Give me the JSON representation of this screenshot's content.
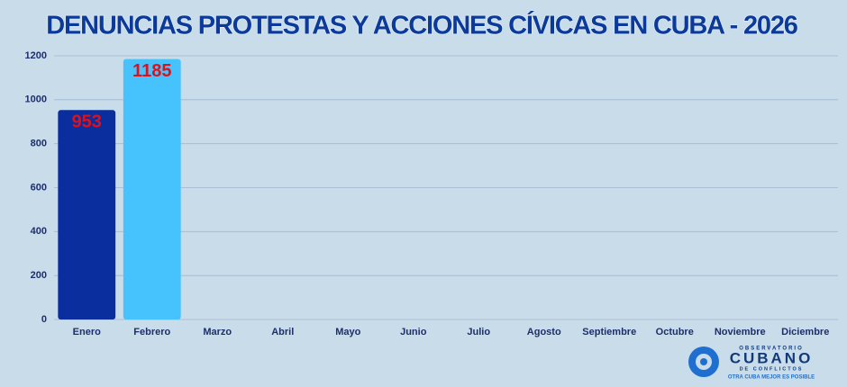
{
  "chart_data": {
    "type": "bar",
    "title": "DENUNCIAS PROTESTAS Y ACCIONES CÍVICAS EN CUBA - 2026",
    "categories": [
      "Enero",
      "Febrero",
      "Marzo",
      "Abril",
      "Mayo",
      "Junio",
      "Julio",
      "Agosto",
      "Septiembre",
      "Octubre",
      "Noviembre",
      "Diciembre"
    ],
    "values": [
      953,
      1185,
      null,
      null,
      null,
      null,
      null,
      null,
      null,
      null,
      null,
      null
    ],
    "colors": [
      "#0b2e9f",
      "#46c3fc"
    ],
    "label_color": "#e0101a",
    "ylim": [
      0,
      1200
    ],
    "yticks": [
      0,
      200,
      400,
      600,
      800,
      1000,
      1200
    ],
    "grid": true
  },
  "logo": {
    "line1": "OBSERVATORIO",
    "line2": "CUBANO",
    "line3": "DE CONFLICTOS",
    "tagline": "OTRA CUBA MEJOR ES POSIBLE"
  }
}
